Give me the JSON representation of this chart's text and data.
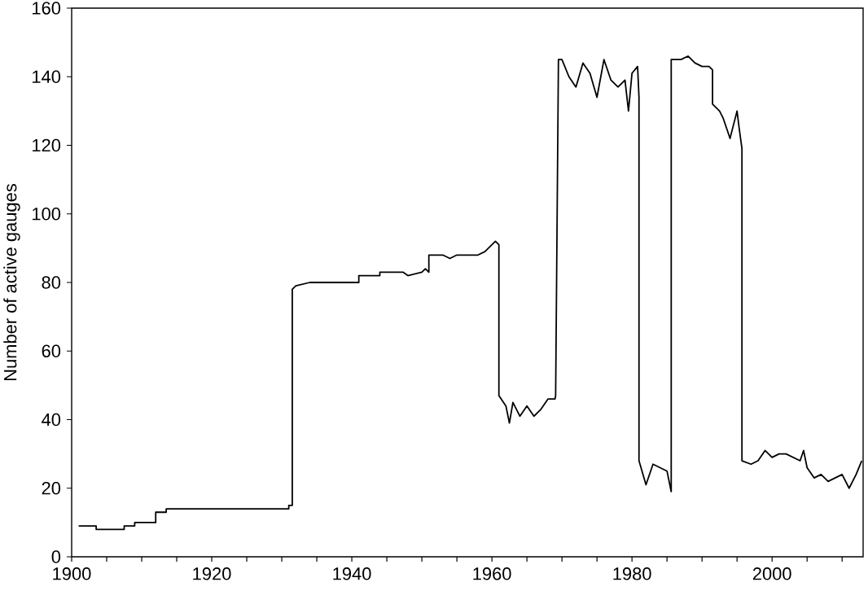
{
  "chart_data": {
    "type": "line",
    "ylabel": "Number of active gauges",
    "xlim": [
      1900,
      2013
    ],
    "ylim": [
      0,
      160
    ],
    "xticks": [
      1900,
      {
        "value": 1905,
        "label": null
      },
      {
        "value": 1910,
        "label": null
      },
      {
        "value": 1915,
        "label": null
      },
      1920,
      {
        "value": 1925,
        "label": null
      },
      {
        "value": 1930,
        "label": null
      },
      {
        "value": 1935,
        "label": null
      },
      1940,
      {
        "value": 1945,
        "label": null
      },
      {
        "value": 1950,
        "label": null
      },
      {
        "value": 1955,
        "label": null
      },
      1960,
      {
        "value": 1965,
        "label": null
      },
      {
        "value": 1970,
        "label": null
      },
      {
        "value": 1975,
        "label": null
      },
      1980,
      {
        "value": 1985,
        "label": null
      },
      {
        "value": 1990,
        "label": null
      },
      {
        "value": 1995,
        "label": null
      },
      2000,
      {
        "value": 2005,
        "label": null
      },
      {
        "value": 2010,
        "label": null
      }
    ],
    "yticks": [
      0,
      20,
      40,
      60,
      80,
      100,
      120,
      140,
      160
    ],
    "marker": "none",
    "line_style": "solid",
    "series": [
      {
        "color": "#000000",
        "x": [
          1901,
          1903.5,
          1903.5,
          1907.5,
          1907.5,
          1909,
          1909,
          1912,
          1912,
          1913.5,
          1913.5,
          1931,
          1931,
          1931.5,
          1931.5,
          1932,
          1932,
          1934,
          1934,
          1941,
          1941,
          1944,
          1944,
          1947.3,
          1948,
          1950,
          1950.5,
          1951,
          1951,
          1953,
          1954,
          1955,
          1958,
          1959,
          1960.5,
          1961,
          1961,
          1962,
          1962.5,
          1963,
          1964,
          1965,
          1966,
          1967,
          1968,
          1969,
          1969.1,
          1969.5,
          1970,
          1971,
          1972,
          1973,
          1974,
          1975,
          1976,
          1977,
          1978,
          1979,
          1979.5,
          1980,
          1980.8,
          1981,
          1981,
          1982,
          1983,
          1984,
          1985,
          1985.6,
          1985.6,
          1987,
          1988,
          1989,
          1990,
          1991,
          1991.5,
          1991.5,
          1992.5,
          1993,
          1994,
          1995,
          1995.3,
          1995.7,
          1995.7,
          1997,
          1998,
          1999,
          2000,
          2001,
          2002,
          2003,
          2004,
          2004.5,
          2005,
          2006,
          2007,
          2008,
          2009,
          2010,
          2011,
          2012,
          2012.8
        ],
        "values": [
          9,
          9,
          8,
          8,
          9,
          9,
          10,
          10,
          13,
          13,
          14,
          14,
          15,
          15,
          78,
          79,
          79,
          80,
          80,
          80,
          82,
          82,
          83,
          83,
          82,
          83,
          84,
          83,
          88,
          88,
          87,
          88,
          88,
          89,
          92,
          91,
          47,
          44,
          39,
          45,
          41,
          44,
          41,
          43,
          46,
          46,
          47,
          145,
          145,
          140,
          137,
          144,
          141,
          134,
          145,
          139,
          137,
          139,
          130,
          141,
          143,
          134,
          28,
          21,
          27,
          26,
          25,
          19,
          145,
          145,
          146,
          144,
          143,
          143,
          142,
          132,
          130,
          128,
          122,
          130,
          125,
          119,
          28,
          27,
          28,
          31,
          29,
          30,
          30,
          29,
          28,
          31,
          26,
          23,
          24,
          22,
          23,
          24,
          20,
          24,
          28
        ]
      }
    ]
  }
}
